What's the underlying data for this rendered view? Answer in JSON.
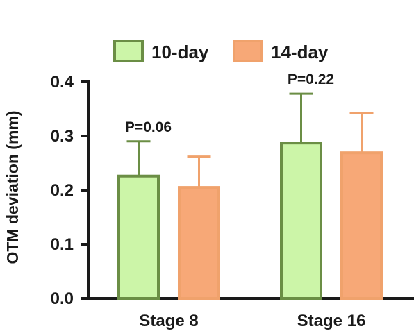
{
  "chart_data": {
    "type": "bar",
    "title": "",
    "xlabel": "",
    "ylabel": "OTM deviation (mm)",
    "ylim": [
      0,
      0.4
    ],
    "yticks": [
      "0.0",
      "0.1",
      "0.2",
      "0.3",
      "0.4"
    ],
    "categories": [
      "Stage 8",
      "Stage 16"
    ],
    "series": [
      {
        "name": "10-day",
        "values": [
          0.226,
          0.287
        ],
        "error": [
          0.064,
          0.091
        ],
        "fill": "#ccf5a8",
        "stroke": "#6b8e45"
      },
      {
        "name": "14-day",
        "values": [
          0.205,
          0.269
        ],
        "error": [
          0.057,
          0.074
        ],
        "fill": "#f7a877",
        "stroke": "#f0a26c"
      }
    ],
    "annotations": [
      {
        "text": "P=0.06",
        "category": 0
      },
      {
        "text": "P=0.22",
        "category": 1
      }
    ],
    "legend_position": "top",
    "grid": false
  }
}
